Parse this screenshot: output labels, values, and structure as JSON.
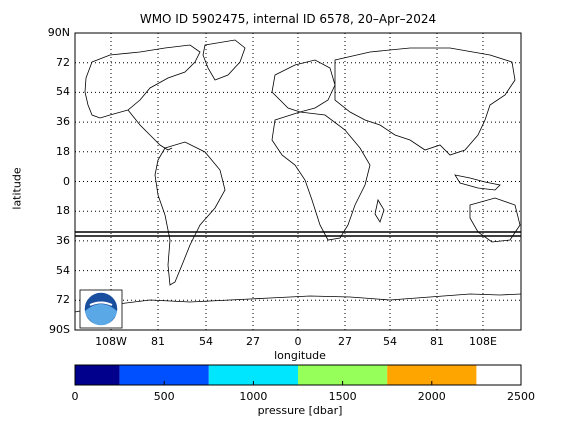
{
  "title": "WMO ID 5902475, internal ID 6578, 20–Apr–2024",
  "map": {
    "lat_ticks": [
      "90N",
      "72",
      "54",
      "36",
      "18",
      "0",
      "18",
      "36",
      "54",
      "72",
      "90S"
    ],
    "lon_ticks": [
      "108W",
      "81",
      "54",
      "27",
      "0",
      "27",
      "54",
      "81",
      "108E"
    ],
    "xlabel": "longitude",
    "ylabel": "latitude",
    "grid": true,
    "trajectory_color": "#000000",
    "logo": "noaa-logo"
  },
  "colorbar": {
    "label": "pressure [dbar]",
    "ticks": [
      "0",
      "500",
      "1000",
      "1500",
      "2000",
      "2500"
    ],
    "range": [
      0,
      2500
    ],
    "segments": [
      {
        "from": 0,
        "to": 250,
        "color": "#00008c"
      },
      {
        "from": 250,
        "to": 750,
        "color": "#0050ff"
      },
      {
        "from": 750,
        "to": 1250,
        "color": "#00e6ff"
      },
      {
        "from": 1250,
        "to": 1750,
        "color": "#96ff5a"
      },
      {
        "from": 1750,
        "to": 2250,
        "color": "#ffa500"
      }
    ]
  }
}
